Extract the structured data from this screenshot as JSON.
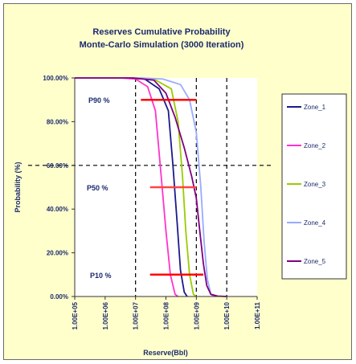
{
  "chart_data": {
    "type": "line",
    "title": [
      "Reserves Cumulative Probability",
      "Monte-Carlo Simulation (3000 Iteration)"
    ],
    "xlabel": "Reserve(Bbl)",
    "ylabel": "Probability (%)",
    "x_scale": "log",
    "xlim": [
      100000,
      100000000000
    ],
    "ylim": [
      0,
      1
    ],
    "x_tick_values": [
      100000,
      1000000,
      10000000,
      100000000,
      1000000000,
      10000000000,
      100000000000
    ],
    "x_tick_labels": [
      "1.00E+05",
      "1.00E+06",
      "1.00E+07",
      "1.00E+08",
      "1.00E+09",
      "1.00E+10",
      "1.00E+11"
    ],
    "y_tick_values": [
      0,
      0.2,
      0.4,
      0.6,
      0.8,
      1.0
    ],
    "y_tick_labels": [
      "0.00%",
      "20.00%",
      "40.00%",
      "60.00%",
      "80.00%",
      "100.00%"
    ],
    "grid": "dashed lines at 1.00E+07, 1.00E+09, 1.00E+10 and 60.00%",
    "legend_placement": "right",
    "series": [
      {
        "name": "Zone_1",
        "color": "#1a1a8c",
        "points": [
          [
            100000,
            1
          ],
          [
            5000000,
            1
          ],
          [
            20000000,
            0.995
          ],
          [
            60000000,
            0.95
          ],
          [
            120000000,
            0.85
          ],
          [
            170000000,
            0.6
          ],
          [
            230000000,
            0.35
          ],
          [
            300000000,
            0.12
          ],
          [
            400000000,
            0.02
          ],
          [
            500000000,
            0
          ]
        ]
      },
      {
        "name": "Zone_2",
        "color": "#ff33cc",
        "points": [
          [
            100000,
            1
          ],
          [
            3000000,
            1
          ],
          [
            10000000,
            0.995
          ],
          [
            25000000,
            0.96
          ],
          [
            45000000,
            0.85
          ],
          [
            70000000,
            0.55
          ],
          [
            100000000,
            0.3
          ],
          [
            140000000,
            0.1
          ],
          [
            200000000,
            0.01
          ],
          [
            250000000,
            0
          ]
        ]
      },
      {
        "name": "Zone_3",
        "color": "#99cc00",
        "points": [
          [
            100000,
            1
          ],
          [
            8000000,
            1
          ],
          [
            40000000,
            0.995
          ],
          [
            150000000,
            0.95
          ],
          [
            250000000,
            0.8
          ],
          [
            350000000,
            0.55
          ],
          [
            450000000,
            0.3
          ],
          [
            600000000,
            0.1
          ],
          [
            800000000,
            0.01
          ],
          [
            1000000000,
            0
          ]
        ]
      },
      {
        "name": "Zone_4",
        "color": "#99aaff",
        "points": [
          [
            100000,
            1
          ],
          [
            15000000,
            1
          ],
          [
            80000000,
            0.995
          ],
          [
            300000000,
            0.97
          ],
          [
            600000000,
            0.9
          ],
          [
            1000000000,
            0.75
          ],
          [
            1400000000,
            0.5
          ],
          [
            1800000000,
            0.25
          ],
          [
            2300000000,
            0.08
          ],
          [
            3000000000,
            0.01
          ],
          [
            4000000000,
            0
          ]
        ]
      },
      {
        "name": "Zone_5",
        "color": "#800080",
        "points": [
          [
            100000,
            1
          ],
          [
            8000000,
            1
          ],
          [
            40000000,
            0.99
          ],
          [
            100000000,
            0.93
          ],
          [
            200000000,
            0.82
          ],
          [
            400000000,
            0.68
          ],
          [
            700000000,
            0.55
          ],
          [
            1000000000,
            0.45
          ],
          [
            1300000000,
            0.3
          ],
          [
            1700000000,
            0.15
          ],
          [
            2200000000,
            0.05
          ],
          [
            3000000000,
            0.01
          ],
          [
            5000000000,
            0.002
          ],
          [
            10000000000,
            0
          ]
        ]
      }
    ],
    "reference_lines": [
      {
        "label": "P90 %",
        "y": 0.9,
        "x_from": 15000000,
        "x_to": 1000000000,
        "color": "#ff0000"
      },
      {
        "label": "P50 %",
        "y": 0.5,
        "x_from": 30000000,
        "x_to": 1000000000,
        "color": "#ff4444"
      },
      {
        "label": "P10 %",
        "y": 0.1,
        "x_from": 30000000,
        "x_to": 1700000000,
        "color": "#ff0000"
      }
    ]
  }
}
